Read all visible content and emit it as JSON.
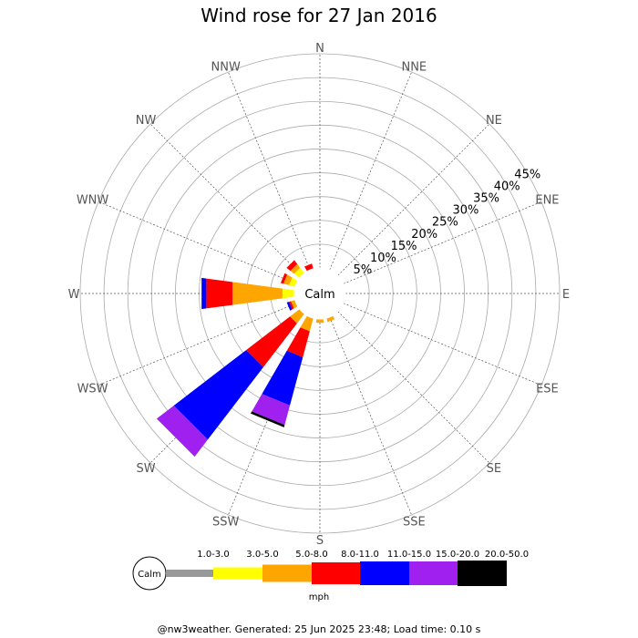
{
  "chart_data": {
    "type": "windrose",
    "title": "Wind rose for 27 Jan 2016",
    "directions": [
      "N",
      "NNE",
      "NE",
      "ENE",
      "E",
      "ESE",
      "SE",
      "SSE",
      "S",
      "SSW",
      "SW",
      "WSW",
      "W",
      "WNW",
      "NW",
      "NNW"
    ],
    "ring_labels": [
      "5%",
      "10%",
      "15%",
      "20%",
      "25%",
      "30%",
      "35%",
      "40%",
      "45%"
    ],
    "ring_max": 45,
    "calm_label": "Calm",
    "speed_bins": [
      {
        "label": "1.0-3.0",
        "color": "#999999"
      },
      {
        "label": "3.0-5.0",
        "color": "#ffff00"
      },
      {
        "label": "5.0-8.0",
        "color": "#ffa500"
      },
      {
        "label": "8.0-11.0",
        "color": "#ff0000"
      },
      {
        "label": "11.0-15.0",
        "color": "#0000ff"
      },
      {
        "label": "15.0-20.0",
        "color": "#a020f0"
      },
      {
        "label": "20.0-50.0",
        "color": "#000000"
      }
    ],
    "unit_label": "mph",
    "series": [
      {
        "direction": "N",
        "values": [
          0,
          0,
          0,
          0,
          0,
          0,
          0
        ]
      },
      {
        "direction": "NNE",
        "values": [
          0,
          0,
          0,
          0,
          0,
          0,
          0
        ]
      },
      {
        "direction": "NE",
        "values": [
          0,
          0,
          0,
          0,
          0,
          0,
          0
        ]
      },
      {
        "direction": "ENE",
        "values": [
          0,
          0,
          0,
          0,
          0,
          0,
          0
        ]
      },
      {
        "direction": "E",
        "values": [
          0,
          0,
          0,
          0,
          0,
          0,
          0
        ]
      },
      {
        "direction": "ESE",
        "values": [
          0,
          0,
          0,
          0,
          0,
          0,
          0
        ]
      },
      {
        "direction": "SE",
        "values": [
          0,
          0,
          0,
          0,
          0,
          0,
          0
        ]
      },
      {
        "direction": "SSE",
        "values": [
          0,
          0,
          0.8,
          0,
          0,
          0,
          0
        ]
      },
      {
        "direction": "S",
        "values": [
          0,
          0,
          0.8,
          0,
          0,
          0,
          0
        ]
      },
      {
        "direction": "SSW",
        "values": [
          0,
          0,
          2.8,
          5.6,
          10.4,
          4.2,
          0.5
        ]
      },
      {
        "direction": "SW",
        "values": [
          0,
          0,
          2.5,
          11.5,
          19.0,
          4.5,
          0
        ]
      },
      {
        "direction": "WSW",
        "values": [
          0,
          0,
          0.9,
          0.4,
          0.5,
          0,
          0
        ]
      },
      {
        "direction": "W",
        "values": [
          0,
          2.5,
          10.5,
          5.5,
          1.0,
          0,
          0
        ]
      },
      {
        "direction": "WNW",
        "values": [
          0,
          1.3,
          1.2,
          0.6,
          0,
          0,
          0
        ]
      },
      {
        "direction": "NW",
        "values": [
          0,
          1.4,
          1.0,
          1.0,
          0,
          0,
          0
        ]
      },
      {
        "direction": "NNW",
        "values": [
          0,
          0,
          0,
          1.1,
          0,
          0,
          0
        ]
      }
    ]
  },
  "footer": "@nw3weather. Generated: 25 Jun 2025 23:48; Load time: 0.10 s"
}
